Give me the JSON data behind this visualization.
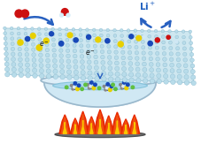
{
  "fig_width": 2.27,
  "fig_height": 1.89,
  "dpi": 100,
  "bg_color": "#ffffff",
  "sheet_color": "#c8e4ef",
  "sheet_dot_color": "#b8dcea",
  "sheet_dot_edge": "#88b8cc",
  "sheet_highlight": "#ddf0f8",
  "bowl_body_color": "#d0e8f4",
  "bowl_rim_color": "#9ab8cc",
  "bowl_outer_color": "#b8ccd8",
  "bowl_liquid_color": "#a8d8ef",
  "flame_red": "#e82800",
  "flame_orange": "#f05010",
  "flame_yellow": "#f8c800",
  "burner_color": "#707070",
  "burner_edge": "#505050",
  "arrow_blue": "#2860c0",
  "o2_red": "#cc1010",
  "water_red": "#cc1010",
  "water_white": "#d8eef8",
  "li_blue": "#2060c0",
  "sulfur_color": "#e8d000",
  "nitrogen_color": "#1848b8",
  "red_atom": "#cc1010",
  "white_atom": "#d0e8f4",
  "mol_bond_color": "#1848b8",
  "mol_yellow": "#e0c000",
  "mol_green": "#60c040",
  "mol_gray": "#909090",
  "electron_color": "#181818"
}
